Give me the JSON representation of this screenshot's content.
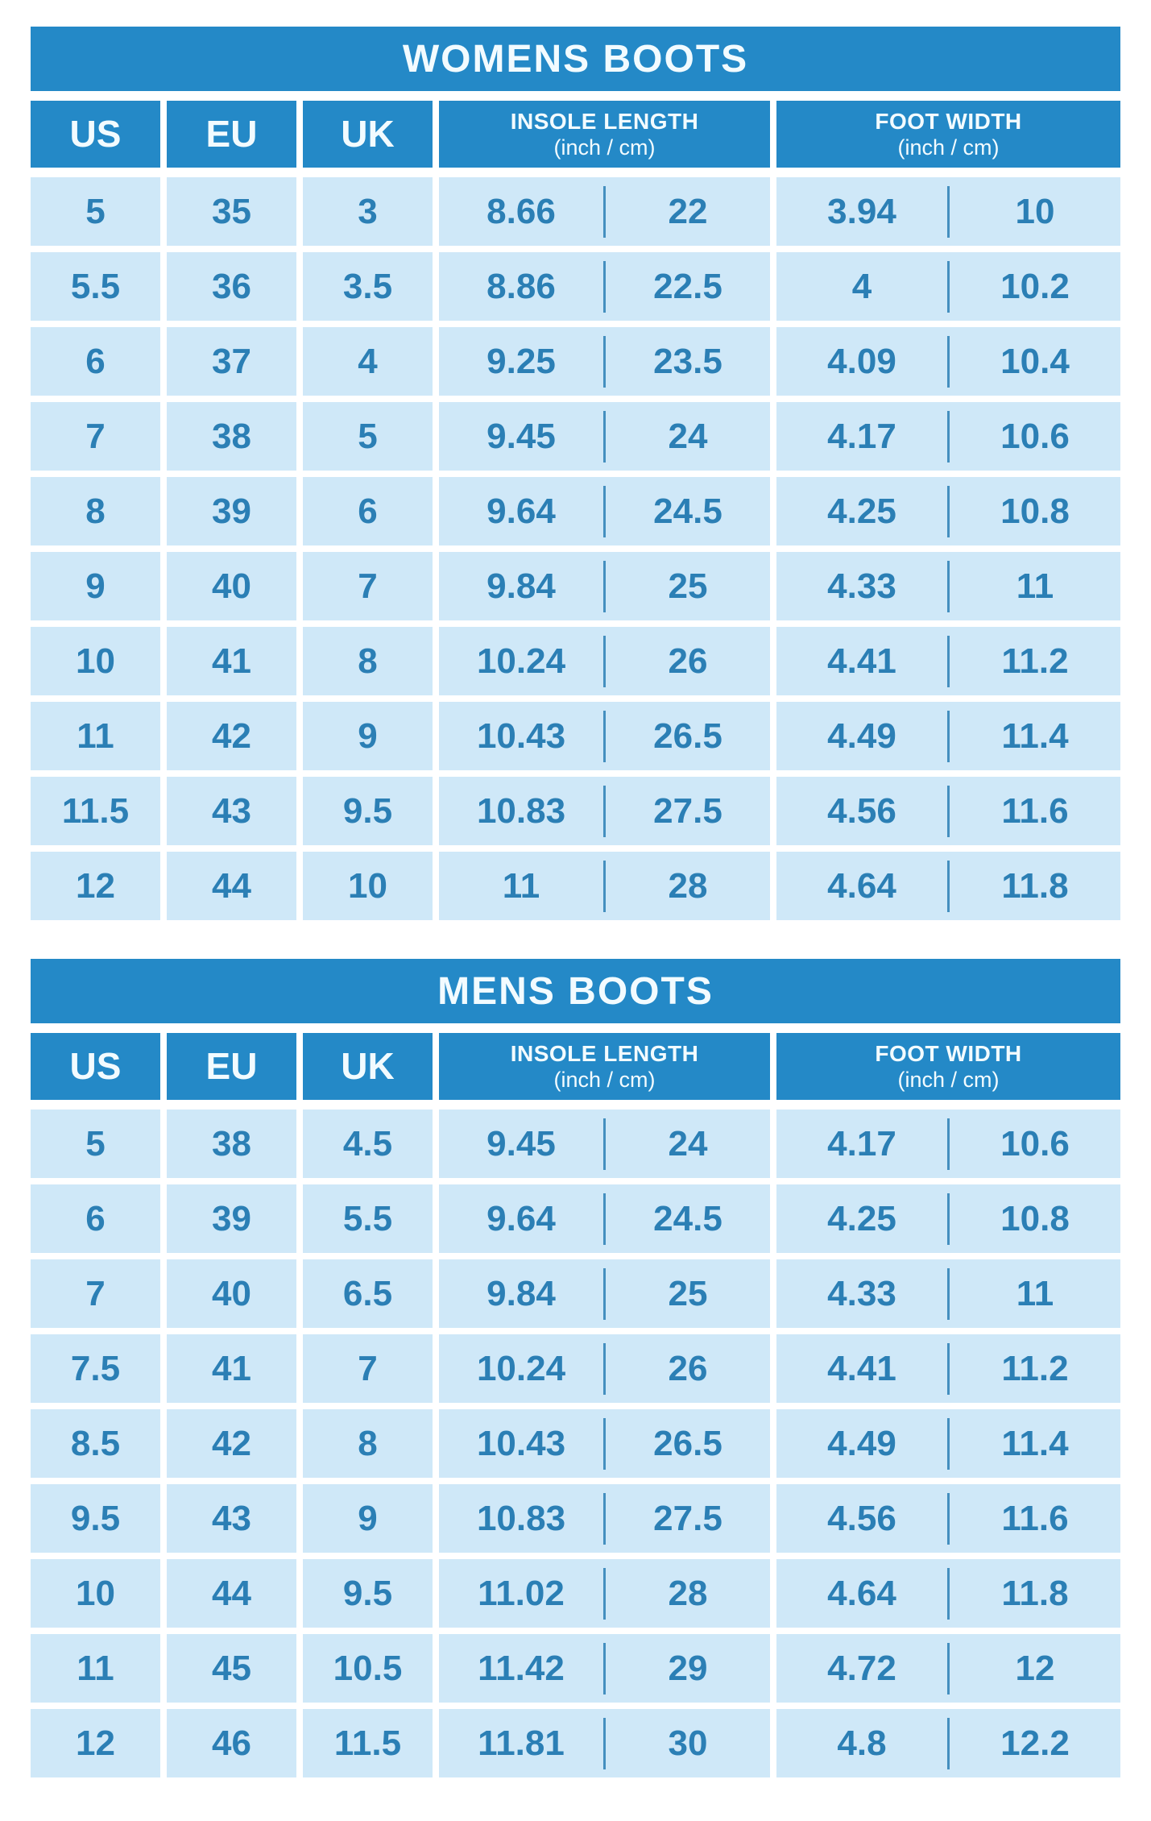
{
  "colors": {
    "page_bg": "#ffffff",
    "header_bg": "#2489c7",
    "header_text": "#f2fbff",
    "cell_bg": "#cfe8f8",
    "value_text": "#2b7fb5"
  },
  "tables": [
    {
      "title": "WOMENS BOOTS",
      "columns": [
        {
          "label": "US"
        },
        {
          "label": "EU"
        },
        {
          "label": "UK"
        },
        {
          "label": "INSOLE LENGTH",
          "sub": "(inch / cm)"
        },
        {
          "label": "FOOT WIDTH",
          "sub": "(inch / cm)"
        }
      ],
      "row_value_order": [
        "us",
        "eu",
        "uk",
        "insole_inch",
        "insole_cm",
        "foot_width_inch",
        "foot_width_cm"
      ],
      "rows": [
        [
          "5",
          "35",
          "3",
          "8.66",
          "22",
          "3.94",
          "10"
        ],
        [
          "5.5",
          "36",
          "3.5",
          "8.86",
          "22.5",
          "4",
          "10.2"
        ],
        [
          "6",
          "37",
          "4",
          "9.25",
          "23.5",
          "4.09",
          "10.4"
        ],
        [
          "7",
          "38",
          "5",
          "9.45",
          "24",
          "4.17",
          "10.6"
        ],
        [
          "8",
          "39",
          "6",
          "9.64",
          "24.5",
          "4.25",
          "10.8"
        ],
        [
          "9",
          "40",
          "7",
          "9.84",
          "25",
          "4.33",
          "11"
        ],
        [
          "10",
          "41",
          "8",
          "10.24",
          "26",
          "4.41",
          "11.2"
        ],
        [
          "11",
          "42",
          "9",
          "10.43",
          "26.5",
          "4.49",
          "11.4"
        ],
        [
          "11.5",
          "43",
          "9.5",
          "10.83",
          "27.5",
          "4.56",
          "11.6"
        ],
        [
          "12",
          "44",
          "10",
          "11",
          "28",
          "4.64",
          "11.8"
        ]
      ]
    },
    {
      "title": "MENS BOOTS",
      "columns": [
        {
          "label": "US"
        },
        {
          "label": "EU"
        },
        {
          "label": "UK"
        },
        {
          "label": "INSOLE LENGTH",
          "sub": "(inch / cm)"
        },
        {
          "label": "FOOT WIDTH",
          "sub": "(inch / cm)"
        }
      ],
      "row_value_order": [
        "us",
        "eu",
        "uk",
        "insole_inch",
        "insole_cm",
        "foot_width_inch",
        "foot_width_cm"
      ],
      "rows": [
        [
          "5",
          "38",
          "4.5",
          "9.45",
          "24",
          "4.17",
          "10.6"
        ],
        [
          "6",
          "39",
          "5.5",
          "9.64",
          "24.5",
          "4.25",
          "10.8"
        ],
        [
          "7",
          "40",
          "6.5",
          "9.84",
          "25",
          "4.33",
          "11"
        ],
        [
          "7.5",
          "41",
          "7",
          "10.24",
          "26",
          "4.41",
          "11.2"
        ],
        [
          "8.5",
          "42",
          "8",
          "10.43",
          "26.5",
          "4.49",
          "11.4"
        ],
        [
          "9.5",
          "43",
          "9",
          "10.83",
          "27.5",
          "4.56",
          "11.6"
        ],
        [
          "10",
          "44",
          "9.5",
          "11.02",
          "28",
          "4.64",
          "11.8"
        ],
        [
          "11",
          "45",
          "10.5",
          "11.42",
          "29",
          "4.72",
          "12"
        ],
        [
          "12",
          "46",
          "11.5",
          "11.81",
          "30",
          "4.8",
          "12.2"
        ]
      ]
    }
  ]
}
